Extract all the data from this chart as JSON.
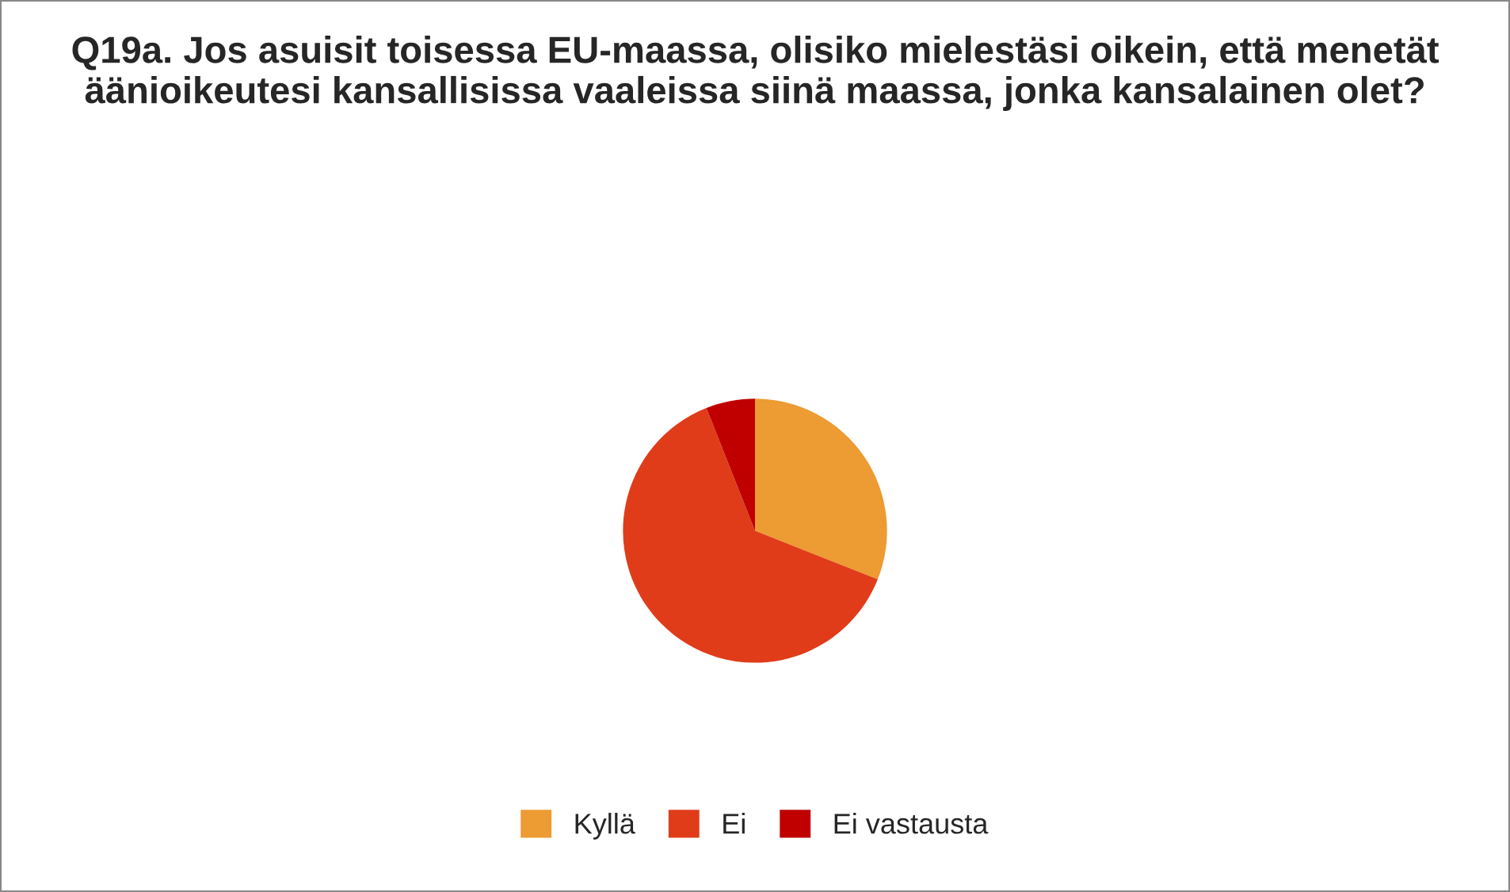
{
  "chart_data": {
    "type": "pie",
    "title": "Q19a. Jos asuisit toisessa EU-maassa, olisiko mielestäsi oikein, että menetät äänioikeutesi kansallisissa vaaleissa siinä maassa, jonka kansalainen olet?",
    "categories": [
      "Kyllä",
      "Ei",
      "Ei vastausta"
    ],
    "values": [
      31,
      63,
      6
    ],
    "colors": [
      "#ed9b33",
      "#e03c1a",
      "#c00000"
    ],
    "legend": "bottom"
  }
}
